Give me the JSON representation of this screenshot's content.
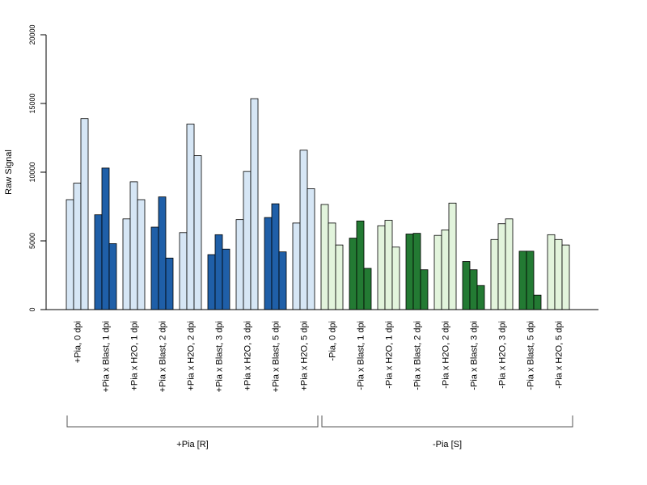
{
  "chart_data": {
    "type": "bar",
    "ylabel": "Raw Signal",
    "xlabel": "",
    "ylim": [
      0,
      20000
    ],
    "yticks": [
      0,
      5000,
      10000,
      15000,
      20000
    ],
    "bars_per_category": 3,
    "colors": {
      "pia_plus_mock": "#d6e6f5",
      "pia_plus_blast": "#1f5fa8",
      "pia_minus_mock": "#e2f4dc",
      "pia_minus_blast": "#237a33",
      "outline": "#000000",
      "axis": "#000000"
    },
    "categories": [
      {
        "label": "+Pia, 0 dpi",
        "color": "pia_plus_mock",
        "values": [
          8000,
          9200,
          13900
        ]
      },
      {
        "label": "+Pia x Blast, 1 dpi",
        "color": "pia_plus_blast",
        "values": [
          6900,
          10300,
          4800
        ]
      },
      {
        "label": "+Pia x H2O, 1 dpi",
        "color": "pia_plus_mock",
        "values": [
          6600,
          9300,
          8000
        ]
      },
      {
        "label": "+Pia x Blast, 2 dpi",
        "color": "pia_plus_blast",
        "values": [
          6000,
          8200,
          3750
        ]
      },
      {
        "label": "+Pia x H2O, 2 dpi",
        "color": "pia_plus_mock",
        "values": [
          5600,
          13500,
          11200
        ]
      },
      {
        "label": "+Pia x Blast, 3 dpi",
        "color": "pia_plus_blast",
        "values": [
          4000,
          5450,
          4400
        ]
      },
      {
        "label": "+Pia x H2O, 3 dpi",
        "color": "pia_plus_mock",
        "values": [
          6550,
          10050,
          15350
        ]
      },
      {
        "label": "+Pia x Blast, 5 dpi",
        "color": "pia_plus_blast",
        "values": [
          6700,
          7700,
          4200
        ]
      },
      {
        "label": "+Pia x H2O, 5 dpi",
        "color": "pia_plus_mock",
        "values": [
          6300,
          11600,
          8800
        ]
      },
      {
        "label": "-Pia, 0 dpi",
        "color": "pia_minus_mock",
        "values": [
          7650,
          6300,
          4700
        ]
      },
      {
        "label": "-Pia x Blast, 1 dpi",
        "color": "pia_minus_blast",
        "values": [
          5200,
          6450,
          3000
        ]
      },
      {
        "label": "-Pia x H2O, 1 dpi",
        "color": "pia_minus_mock",
        "values": [
          6100,
          6500,
          4550
        ]
      },
      {
        "label": "-Pia x Blast, 2 dpi",
        "color": "pia_minus_blast",
        "values": [
          5500,
          5550,
          2900
        ]
      },
      {
        "label": "-Pia x H2O, 2 dpi",
        "color": "pia_minus_mock",
        "values": [
          5400,
          5800,
          7750
        ]
      },
      {
        "label": "-Pia x Blast, 3 dpi",
        "color": "pia_minus_blast",
        "values": [
          3500,
          2900,
          1750
        ]
      },
      {
        "label": "-Pia x H2O, 3 dpi",
        "color": "pia_minus_mock",
        "values": [
          5100,
          6250,
          6600
        ]
      },
      {
        "label": "-Pia x Blast, 5 dpi",
        "color": "pia_minus_blast",
        "values": [
          4250,
          4250,
          1050
        ]
      },
      {
        "label": "-Pia x H2O, 5 dpi",
        "color": "pia_minus_mock",
        "values": [
          5450,
          5100,
          4700
        ]
      }
    ],
    "groups": [
      {
        "label": "+Pia [R]",
        "from": 0,
        "to": 8
      },
      {
        "label": "-Pia [S]",
        "from": 9,
        "to": 17
      }
    ],
    "grid": false,
    "legend": "none"
  }
}
